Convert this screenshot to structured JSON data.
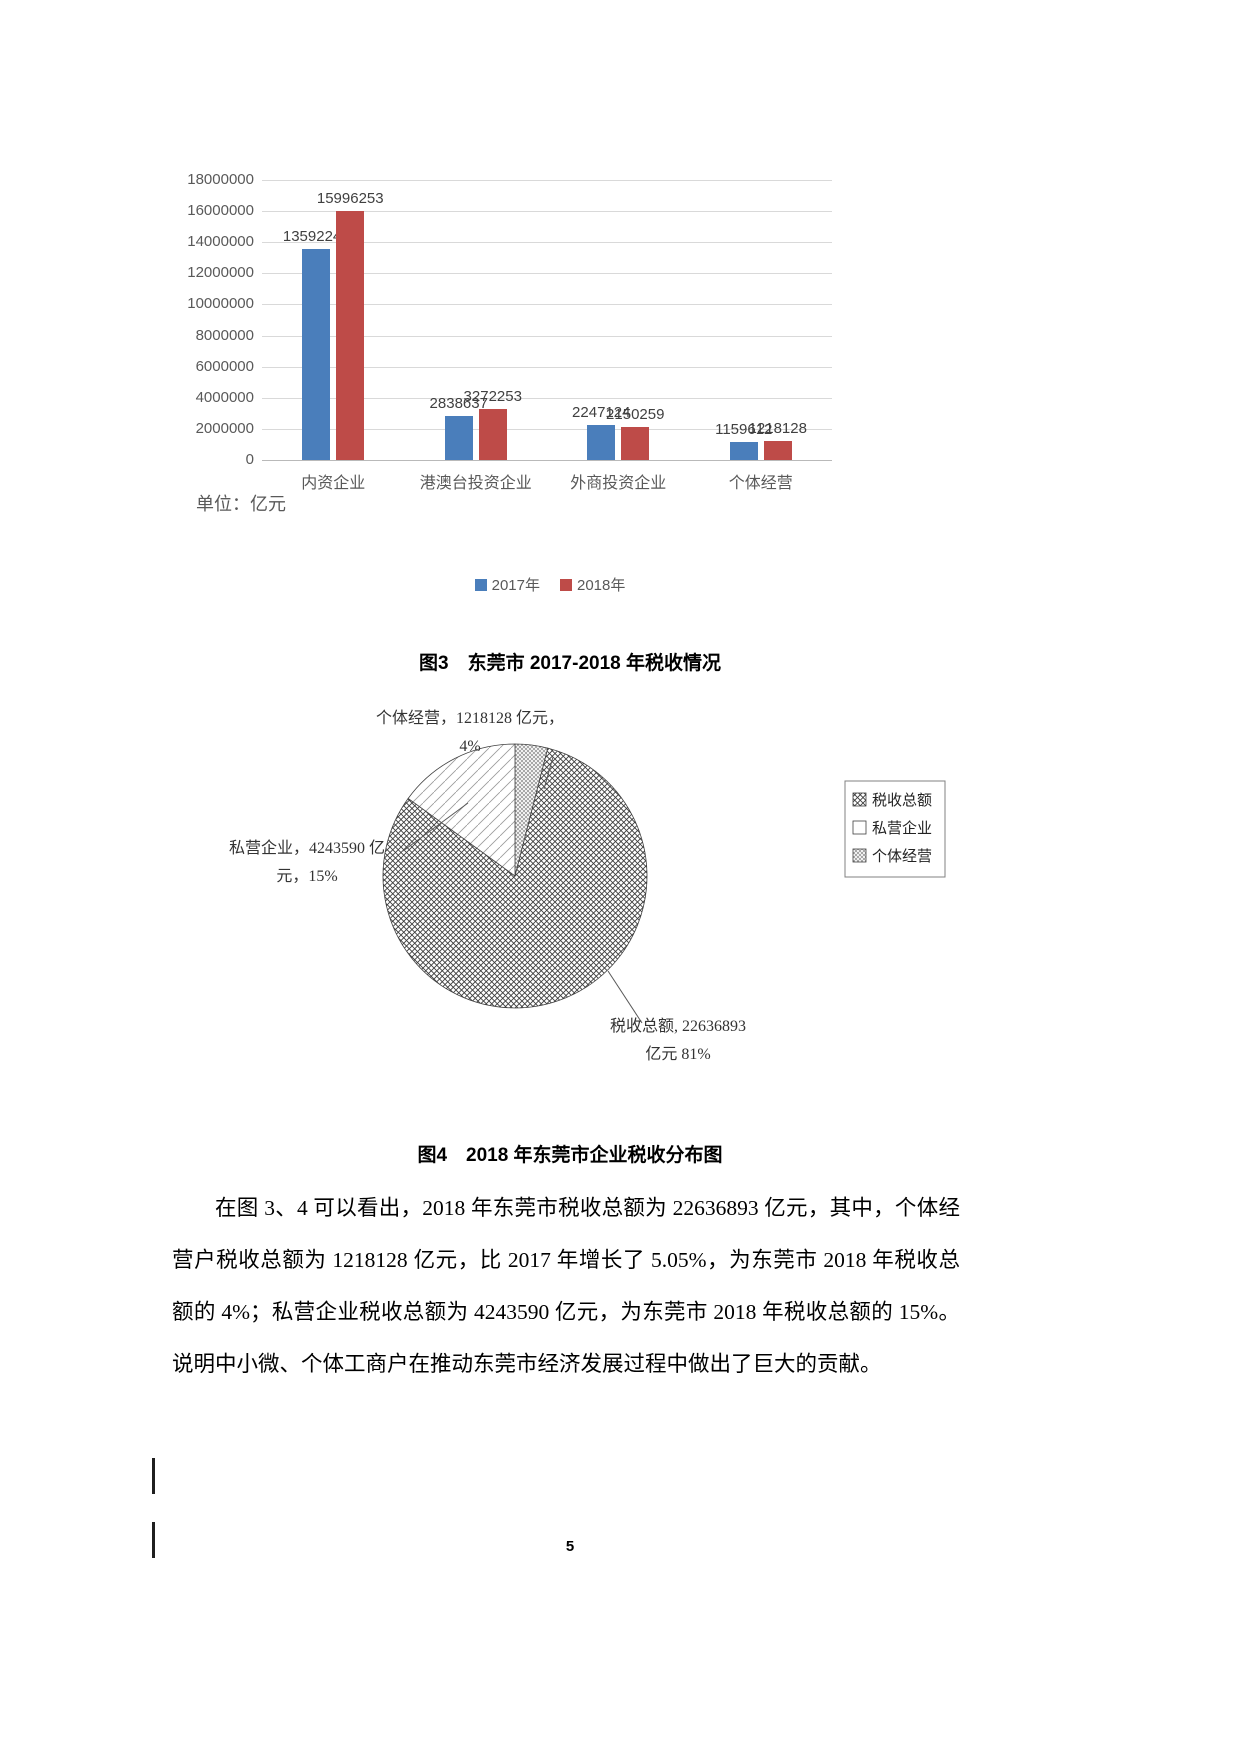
{
  "unit_label": "单位：亿元",
  "figure3_caption": "图3　东莞市 2017-2018 年税收情况",
  "figure4_caption": "图4　2018 年东莞市企业税收分布图",
  "paragraph": "在图 3、4 可以看出，2018 年东莞市税收总额为 22636893 亿元，其中，个体经营户税收总额为 1218128 亿元，比 2017 年增长了 5.05%，为东莞市 2018 年税收总额的 4%；私营企业税收总额为 4243590 亿元，为东莞市 2018 年税收总额的 15%。说明中小微、个体工商户在推动东莞市经济发展过程中做出了巨大的贡献。",
  "page_number": "5",
  "colors": {
    "series_2017": "#4a7ebb",
    "series_2018": "#be4b48",
    "gridline": "#d9d9d9",
    "chart_text": "#595959"
  },
  "chart_data": [
    {
      "type": "bar",
      "title": "",
      "xlabel": "",
      "ylabel": "",
      "unit": "亿元",
      "categories": [
        "内资企业",
        "港澳台投资企业",
        "外商投资企业",
        "个体经营"
      ],
      "series": [
        {
          "name": "2017年",
          "color": "#4a7ebb",
          "values": [
            13592244,
            2838637,
            2247124,
            1159612
          ]
        },
        {
          "name": "2018年",
          "color": "#be4b48",
          "values": [
            15996253,
            3272253,
            2150259,
            1218128
          ]
        }
      ],
      "ylim": [
        0,
        18000000
      ],
      "ytick_step": 2000000,
      "grid": true,
      "legend_position": "bottom",
      "data_labels": true
    },
    {
      "type": "pie",
      "title": "",
      "slices": [
        {
          "name": "个体经营",
          "value": 1218128,
          "pct": 4,
          "pattern": "fine-cross",
          "label_line1": "个体经营，1218128 亿元，",
          "label_line2": "4%"
        },
        {
          "name": "税收总额",
          "value": 22636893,
          "pct": 81,
          "pattern": "diamond-hatch",
          "label_line1": "税收总额, 22636893",
          "label_line2": "亿元 81%"
        },
        {
          "name": "私营企业",
          "value": 4243590,
          "pct": 15,
          "pattern": "sparse-diag",
          "label_line1": "私营企业，4243590 亿",
          "label_line2": "元，15%"
        }
      ],
      "legend": [
        {
          "label": "税收总额",
          "pattern": "diamond-hatch"
        },
        {
          "label": "私营企业",
          "pattern": "none"
        },
        {
          "label": "个体经营",
          "pattern": "fine-cross"
        }
      ],
      "legend_position": "right"
    }
  ]
}
